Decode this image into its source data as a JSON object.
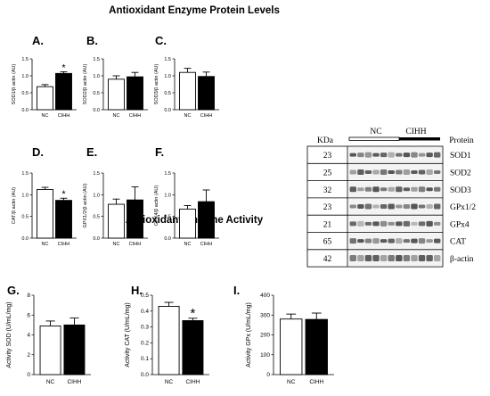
{
  "titles": {
    "protein": "Antioxidant Enzyme Protein Levels",
    "activity": "Antioxidant Enzyme Activity"
  },
  "chart_data": [
    {
      "id": "A",
      "letter": "A.",
      "type": "bar",
      "categories": [
        "NC",
        "CIHH"
      ],
      "values": [
        0.68,
        1.07
      ],
      "errors": [
        0.06,
        0.05
      ],
      "ylabel": "SOD1/β actin (AU)",
      "ylim": [
        0,
        1.5
      ],
      "yticks": [
        "0.0",
        "0.5",
        "1.0",
        "1.5"
      ],
      "significance": [
        "",
        "*"
      ],
      "fills": [
        "#ffffff",
        "#000000"
      ]
    },
    {
      "id": "B",
      "letter": "B.",
      "type": "bar",
      "categories": [
        "NC",
        "CIHH"
      ],
      "values": [
        0.9,
        0.97
      ],
      "errors": [
        0.1,
        0.13
      ],
      "ylabel": "SOD2/β actin (AU)",
      "ylim": [
        0,
        1.5
      ],
      "yticks": [
        "0.0",
        "0.5",
        "1.0",
        "1.5"
      ],
      "significance": [
        "",
        ""
      ],
      "fills": [
        "#ffffff",
        "#000000"
      ]
    },
    {
      "id": "C",
      "letter": "C.",
      "type": "bar",
      "categories": [
        "NC",
        "CIHH"
      ],
      "values": [
        1.1,
        0.98
      ],
      "errors": [
        0.12,
        0.13
      ],
      "ylabel": "SOD3/β actin (AU)",
      "ylim": [
        0,
        1.5
      ],
      "yticks": [
        "0.0",
        "0.5",
        "1.0",
        "1.5"
      ],
      "significance": [
        "",
        ""
      ],
      "fills": [
        "#ffffff",
        "#000000"
      ]
    },
    {
      "id": "D",
      "letter": "D.",
      "type": "bar",
      "categories": [
        "NC",
        "CIHH"
      ],
      "values": [
        1.12,
        0.87
      ],
      "errors": [
        0.05,
        0.05
      ],
      "ylabel": "CAT/β actin (AU)",
      "ylim": [
        0,
        1.5
      ],
      "yticks": [
        "0.0",
        "0.5",
        "1.0",
        "1.5"
      ],
      "significance": [
        "",
        "*"
      ],
      "fills": [
        "#ffffff",
        "#000000"
      ]
    },
    {
      "id": "E",
      "letter": "E.",
      "type": "bar",
      "categories": [
        "NC",
        "CIHH"
      ],
      "values": [
        0.78,
        0.88
      ],
      "errors": [
        0.12,
        0.3
      ],
      "ylabel": "GPX1/2/β actin (AU)",
      "ylim": [
        0,
        1.5
      ],
      "yticks": [
        "0.0",
        "0.5",
        "1.0",
        "1.5"
      ],
      "significance": [
        "",
        ""
      ],
      "fills": [
        "#ffffff",
        "#000000"
      ]
    },
    {
      "id": "F",
      "letter": "F.",
      "type": "bar",
      "categories": [
        "NC",
        "CIHH"
      ],
      "values": [
        0.67,
        0.84
      ],
      "errors": [
        0.08,
        0.27
      ],
      "ylabel": "GPX4/β actin (AU)",
      "ylim": [
        0,
        1.5
      ],
      "yticks": [
        "0.0",
        "0.5",
        "1.0",
        "1.5"
      ],
      "significance": [
        "",
        ""
      ],
      "fills": [
        "#ffffff",
        "#000000"
      ]
    },
    {
      "id": "G",
      "letter": "G.",
      "type": "bar",
      "categories": [
        "NC",
        "CIHH"
      ],
      "values": [
        4.9,
        5.0
      ],
      "errors": [
        0.5,
        0.7
      ],
      "ylabel": "Activity SOD (U/mL/mg)",
      "ylim": [
        0,
        8
      ],
      "yticks": [
        "0",
        "2",
        "4",
        "6",
        "8"
      ],
      "significance": [
        "",
        ""
      ],
      "fills": [
        "#ffffff",
        "#000000"
      ]
    },
    {
      "id": "H",
      "letter": "H.",
      "type": "bar",
      "categories": [
        "NC",
        "CIHH"
      ],
      "values": [
        0.43,
        0.34
      ],
      "errors": [
        0.025,
        0.015
      ],
      "ylabel": "Activity CAT (U/mL/mg)",
      "ylim": [
        0,
        0.5
      ],
      "yticks": [
        "0.0",
        "0.1",
        "0.2",
        "0.3",
        "0.4",
        "0.5"
      ],
      "significance": [
        "",
        "*"
      ],
      "fills": [
        "#ffffff",
        "#000000"
      ]
    },
    {
      "id": "I",
      "letter": "I.",
      "type": "bar",
      "categories": [
        "NC",
        "CIHH"
      ],
      "values": [
        280,
        278
      ],
      "errors": [
        25,
        32
      ],
      "ylabel": "Activity GPx (U/mL/mg)",
      "ylim": [
        0,
        400
      ],
      "yticks": [
        "0",
        "100",
        "200",
        "300",
        "400"
      ],
      "significance": [
        "",
        ""
      ],
      "fills": [
        "#ffffff",
        "#000000"
      ]
    }
  ],
  "blot": {
    "header_kda": "KDa",
    "group_nc": "NC",
    "group_cihh": "CIHH",
    "header_protein": "Protein",
    "rows": [
      {
        "kda": "23",
        "protein": "SOD1"
      },
      {
        "kda": "25",
        "protein": "SOD2"
      },
      {
        "kda": "32",
        "protein": "SOD3"
      },
      {
        "kda": "23",
        "protein": "GPx1/2"
      },
      {
        "kda": "21",
        "protein": "GPx4"
      },
      {
        "kda": "65",
        "protein": "CAT"
      },
      {
        "kda": "42",
        "protein": "β-actin"
      }
    ]
  }
}
